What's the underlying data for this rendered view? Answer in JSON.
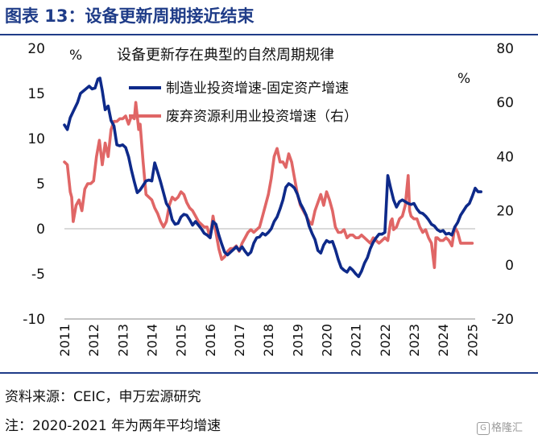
{
  "page": {
    "title": "图表 13：设备更新周期接近结束",
    "source": "资料来源：CEIC，申万宏源研究",
    "note": "注：2020-2021 年为两年平均增速",
    "watermark_text": "格隆汇",
    "watermark_glyph": "G"
  },
  "colors": {
    "primary": "#0e2a8a",
    "secondary": "#e06666",
    "accent": "#1f3c88"
  },
  "chart_data": {
    "type": "line",
    "title": "设备更新存在典型的自然周期规律",
    "left_unit": "%",
    "right_unit": "%",
    "y_left": {
      "min": -10,
      "max": 20,
      "ticks": [
        -10,
        -5,
        0,
        5,
        10,
        15,
        20
      ]
    },
    "y_right": {
      "min": -20,
      "max": 80,
      "ticks": [
        -20,
        0,
        20,
        40,
        60,
        80
      ]
    },
    "x_ticks": [
      "2011",
      "2012",
      "2013",
      "2014",
      "2015",
      "2016",
      "2017",
      "2018",
      "2019",
      "2020",
      "2021",
      "2022",
      "2023",
      "2024",
      "2025"
    ],
    "x_range": [
      2011,
      2025.1
    ],
    "series": [
      {
        "name": "制造业投资增速-固定资产增速",
        "axis": "left",
        "color": "#0e2a8a",
        "points": [
          [
            2011.0,
            11.5
          ],
          [
            2011.1,
            11.0
          ],
          [
            2011.2,
            12.3
          ],
          [
            2011.3,
            13.0
          ],
          [
            2011.45,
            14.0
          ],
          [
            2011.55,
            15.0
          ],
          [
            2011.7,
            15.4
          ],
          [
            2011.85,
            15.8
          ],
          [
            2011.95,
            15.5
          ],
          [
            2012.05,
            15.6
          ],
          [
            2012.15,
            16.6
          ],
          [
            2012.22,
            16.7
          ],
          [
            2012.3,
            15.3
          ],
          [
            2012.4,
            13.2
          ],
          [
            2012.5,
            13.6
          ],
          [
            2012.6,
            12.0
          ],
          [
            2012.7,
            11.4
          ],
          [
            2012.8,
            9.3
          ],
          [
            2012.9,
            9.2
          ],
          [
            2013.0,
            9.3
          ],
          [
            2013.1,
            9.0
          ],
          [
            2013.2,
            8.0
          ],
          [
            2013.3,
            6.5
          ],
          [
            2013.4,
            5.2
          ],
          [
            2013.5,
            4.0
          ],
          [
            2013.6,
            4.3
          ],
          [
            2013.7,
            4.8
          ],
          [
            2013.8,
            5.3
          ],
          [
            2013.9,
            5.4
          ],
          [
            2014.0,
            5.3
          ],
          [
            2014.1,
            7.3
          ],
          [
            2014.2,
            6.3
          ],
          [
            2014.3,
            5.2
          ],
          [
            2014.4,
            4.0
          ],
          [
            2014.5,
            2.8
          ],
          [
            2014.6,
            2.3
          ],
          [
            2014.7,
            1.0
          ],
          [
            2014.8,
            0.5
          ],
          [
            2014.9,
            0.6
          ],
          [
            2015.0,
            1.3
          ],
          [
            2015.1,
            1.6
          ],
          [
            2015.2,
            1.5
          ],
          [
            2015.3,
            1.0
          ],
          [
            2015.4,
            0.4
          ],
          [
            2015.5,
            0.8
          ],
          [
            2015.6,
            0.4
          ],
          [
            2015.7,
            0.0
          ],
          [
            2015.8,
            -0.5
          ],
          [
            2015.9,
            -0.7
          ],
          [
            2016.0,
            -1.0
          ],
          [
            2016.1,
            0.8
          ],
          [
            2016.2,
            0.5
          ],
          [
            2016.3,
            -0.7
          ],
          [
            2016.4,
            -1.7
          ],
          [
            2016.5,
            -2.6
          ],
          [
            2016.6,
            -2.9
          ],
          [
            2016.7,
            -2.6
          ],
          [
            2016.8,
            -2.3
          ],
          [
            2016.9,
            -2.0
          ],
          [
            2017.0,
            -2.4
          ],
          [
            2017.1,
            -2.0
          ],
          [
            2017.2,
            -2.5
          ],
          [
            2017.3,
            -2.9
          ],
          [
            2017.4,
            -2.6
          ],
          [
            2017.5,
            -1.6
          ],
          [
            2017.6,
            -1.0
          ],
          [
            2017.7,
            -0.9
          ],
          [
            2017.8,
            -0.5
          ],
          [
            2017.9,
            -0.7
          ],
          [
            2018.0,
            -0.4
          ],
          [
            2018.1,
            0.0
          ],
          [
            2018.2,
            0.8
          ],
          [
            2018.3,
            1.3
          ],
          [
            2018.4,
            2.2
          ],
          [
            2018.5,
            3.2
          ],
          [
            2018.6,
            4.6
          ],
          [
            2018.7,
            5.0
          ],
          [
            2018.8,
            4.8
          ],
          [
            2018.9,
            4.5
          ],
          [
            2019.0,
            3.8
          ],
          [
            2019.1,
            2.8
          ],
          [
            2019.2,
            2.2
          ],
          [
            2019.3,
            1.5
          ],
          [
            2019.4,
            0.3
          ],
          [
            2019.5,
            -0.5
          ],
          [
            2019.6,
            -1.2
          ],
          [
            2019.7,
            -2.4
          ],
          [
            2019.8,
            -2.7
          ],
          [
            2019.9,
            -1.8
          ],
          [
            2020.0,
            -1.3
          ],
          [
            2020.1,
            -1.5
          ],
          [
            2020.2,
            -1.4
          ],
          [
            2020.3,
            -2.3
          ],
          [
            2020.4,
            -3.4
          ],
          [
            2020.5,
            -4.3
          ],
          [
            2020.6,
            -4.6
          ],
          [
            2020.7,
            -4.8
          ],
          [
            2020.8,
            -4.3
          ],
          [
            2020.9,
            -4.6
          ],
          [
            2021.0,
            -5.0
          ],
          [
            2021.1,
            -5.3
          ],
          [
            2021.2,
            -4.7
          ],
          [
            2021.3,
            -3.8
          ],
          [
            2021.4,
            -3.2
          ],
          [
            2021.5,
            -2.2
          ],
          [
            2021.6,
            -1.5
          ],
          [
            2021.7,
            -1.0
          ],
          [
            2021.8,
            -0.6
          ],
          [
            2021.9,
            -0.6
          ],
          [
            2022.0,
            -0.4
          ],
          [
            2022.1,
            5.9
          ],
          [
            2022.2,
            4.5
          ],
          [
            2022.3,
            3.2
          ],
          [
            2022.4,
            2.4
          ],
          [
            2022.5,
            3.0
          ],
          [
            2022.6,
            3.2
          ],
          [
            2022.7,
            3.0
          ],
          [
            2022.8,
            2.8
          ],
          [
            2022.9,
            2.7
          ],
          [
            2023.0,
            2.8
          ],
          [
            2023.1,
            2.2
          ],
          [
            2023.2,
            1.8
          ],
          [
            2023.3,
            1.7
          ],
          [
            2023.4,
            1.4
          ],
          [
            2023.5,
            1.0
          ],
          [
            2023.6,
            0.5
          ],
          [
            2023.7,
            0.3
          ],
          [
            2023.8,
            -0.1
          ],
          [
            2023.9,
            -0.3
          ],
          [
            2024.0,
            -0.2
          ],
          [
            2024.1,
            -0.6
          ],
          [
            2024.2,
            -0.5
          ],
          [
            2024.3,
            -0.7
          ],
          [
            2024.4,
            0.2
          ],
          [
            2024.5,
            0.7
          ],
          [
            2024.6,
            1.5
          ],
          [
            2024.7,
            2.0
          ],
          [
            2024.8,
            2.5
          ],
          [
            2024.9,
            2.8
          ],
          [
            2025.0,
            3.6
          ],
          [
            2025.1,
            4.5
          ],
          [
            2025.2,
            4.1
          ],
          [
            2025.3,
            4.1
          ]
        ]
      },
      {
        "name": "废弃资源利用业投资增速（右）",
        "axis": "right",
        "color": "#e06666",
        "points": [
          [
            2011.0,
            38
          ],
          [
            2011.1,
            37
          ],
          [
            2011.2,
            27
          ],
          [
            2011.25,
            25
          ],
          [
            2011.3,
            16
          ],
          [
            2011.4,
            22
          ],
          [
            2011.5,
            24
          ],
          [
            2011.6,
            20
          ],
          [
            2011.7,
            28
          ],
          [
            2011.8,
            30
          ],
          [
            2011.9,
            30
          ],
          [
            2012.0,
            31
          ],
          [
            2012.1,
            40
          ],
          [
            2012.2,
            46
          ],
          [
            2012.3,
            37
          ],
          [
            2012.4,
            45
          ],
          [
            2012.5,
            40
          ],
          [
            2012.6,
            50
          ],
          [
            2012.7,
            53
          ],
          [
            2012.8,
            53
          ],
          [
            2012.9,
            54
          ],
          [
            2013.0,
            54
          ],
          [
            2013.1,
            55
          ],
          [
            2013.2,
            52
          ],
          [
            2013.3,
            55
          ],
          [
            2013.4,
            54
          ],
          [
            2013.45,
            60
          ],
          [
            2013.55,
            50
          ],
          [
            2013.6,
            52
          ],
          [
            2013.7,
            38
          ],
          [
            2013.8,
            26
          ],
          [
            2013.9,
            25
          ],
          [
            2014.0,
            24
          ],
          [
            2014.1,
            21
          ],
          [
            2014.2,
            19
          ],
          [
            2014.3,
            16
          ],
          [
            2014.4,
            14
          ],
          [
            2014.5,
            16
          ],
          [
            2014.6,
            22
          ],
          [
            2014.7,
            25
          ],
          [
            2014.8,
            24
          ],
          [
            2014.9,
            25
          ],
          [
            2015.0,
            27
          ],
          [
            2015.1,
            26
          ],
          [
            2015.2,
            23
          ],
          [
            2015.3,
            21
          ],
          [
            2015.4,
            20
          ],
          [
            2015.5,
            18
          ],
          [
            2015.6,
            16
          ],
          [
            2015.7,
            15
          ],
          [
            2015.8,
            14
          ],
          [
            2015.9,
            14
          ],
          [
            2016.0,
            10
          ],
          [
            2016.1,
            18
          ],
          [
            2016.2,
            12
          ],
          [
            2016.3,
            6
          ],
          [
            2016.4,
            2
          ],
          [
            2016.5,
            3
          ],
          [
            2016.6,
            5
          ],
          [
            2016.7,
            6
          ],
          [
            2016.8,
            6
          ],
          [
            2016.9,
            7
          ],
          [
            2017.0,
            5
          ],
          [
            2017.1,
            8
          ],
          [
            2017.2,
            10
          ],
          [
            2017.3,
            12
          ],
          [
            2017.4,
            13
          ],
          [
            2017.5,
            12
          ],
          [
            2017.6,
            13
          ],
          [
            2017.7,
            14
          ],
          [
            2017.8,
            18
          ],
          [
            2017.9,
            22
          ],
          [
            2018.0,
            26
          ],
          [
            2018.1,
            32
          ],
          [
            2018.2,
            40
          ],
          [
            2018.3,
            43
          ],
          [
            2018.4,
            38
          ],
          [
            2018.5,
            38
          ],
          [
            2018.6,
            36
          ],
          [
            2018.7,
            41
          ],
          [
            2018.8,
            38
          ],
          [
            2018.9,
            32
          ],
          [
            2019.0,
            26
          ],
          [
            2019.1,
            22
          ],
          [
            2019.2,
            20
          ],
          [
            2019.3,
            18
          ],
          [
            2019.4,
            16
          ],
          [
            2019.5,
            15
          ],
          [
            2019.6,
            20
          ],
          [
            2019.7,
            23
          ],
          [
            2019.8,
            26
          ],
          [
            2019.9,
            22
          ],
          [
            2020.0,
            27
          ],
          [
            2020.1,
            24
          ],
          [
            2020.2,
            20
          ],
          [
            2020.3,
            14
          ],
          [
            2020.4,
            12
          ],
          [
            2020.5,
            12
          ],
          [
            2020.6,
            13
          ],
          [
            2020.7,
            10
          ],
          [
            2020.8,
            11
          ],
          [
            2020.9,
            11
          ],
          [
            2021.0,
            10
          ],
          [
            2021.1,
            10
          ],
          [
            2021.2,
            11
          ],
          [
            2021.3,
            10
          ],
          [
            2021.4,
            9
          ],
          [
            2021.5,
            8
          ],
          [
            2021.6,
            10
          ],
          [
            2021.7,
            9
          ],
          [
            2021.8,
            8
          ],
          [
            2021.9,
            9
          ],
          [
            2022.0,
            10
          ],
          [
            2022.1,
            9
          ],
          [
            2022.2,
            16
          ],
          [
            2022.25,
            17
          ],
          [
            2022.3,
            13
          ],
          [
            2022.4,
            14
          ],
          [
            2022.5,
            17
          ],
          [
            2022.6,
            18
          ],
          [
            2022.7,
            22
          ],
          [
            2022.8,
            33
          ],
          [
            2022.85,
            20
          ],
          [
            2022.9,
            18
          ],
          [
            2023.0,
            17
          ],
          [
            2023.1,
            17
          ],
          [
            2023.2,
            14
          ],
          [
            2023.3,
            12
          ],
          [
            2023.4,
            13
          ],
          [
            2023.5,
            10
          ],
          [
            2023.6,
            8
          ],
          [
            2023.7,
            -1
          ],
          [
            2023.75,
            10
          ],
          [
            2023.8,
            10
          ],
          [
            2023.9,
            9
          ],
          [
            2024.0,
            9
          ],
          [
            2024.1,
            10
          ],
          [
            2024.2,
            9
          ],
          [
            2024.3,
            7
          ],
          [
            2024.4,
            14
          ],
          [
            2024.5,
            12
          ],
          [
            2024.6,
            8
          ],
          [
            2024.7,
            8
          ],
          [
            2024.8,
            8
          ],
          [
            2024.9,
            8
          ],
          [
            2025.0,
            8
          ]
        ]
      }
    ]
  }
}
